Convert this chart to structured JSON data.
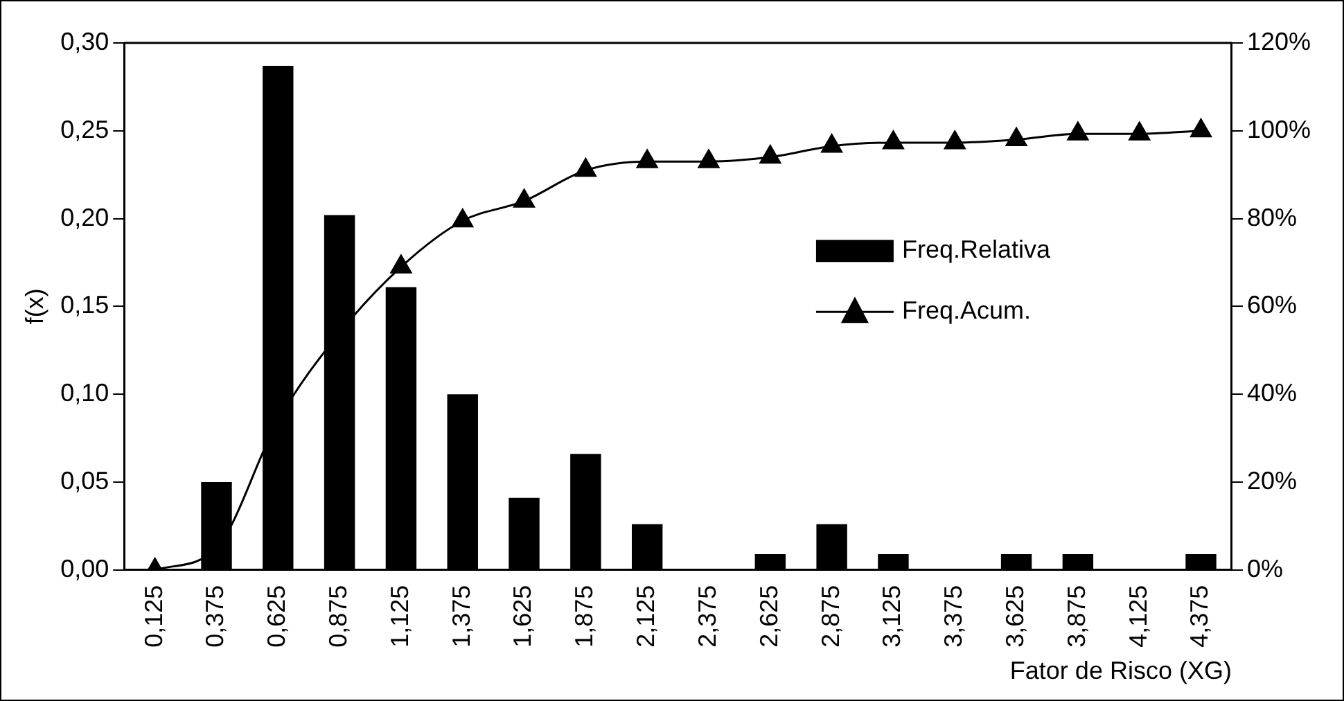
{
  "chart_data": {
    "type": "bar",
    "xlabel": "Fator de Risco (XG)",
    "ylabel": "f(x)",
    "categories": [
      "0,125",
      "0,375",
      "0,625",
      "0,875",
      "1,125",
      "1,375",
      "1,625",
      "1,875",
      "2,125",
      "2,375",
      "2,625",
      "2,875",
      "3,125",
      "3,375",
      "3,625",
      "3,875",
      "4,125",
      "4,375"
    ],
    "series": [
      {
        "name": "Freq.Relativa",
        "color": "#000000",
        "values": [
          0,
          0.05,
          0.287,
          0.202,
          0.161,
          0.1,
          0.041,
          0.066,
          0.026,
          0,
          0.009,
          0.026,
          0.009,
          0,
          0.009,
          0.009,
          0,
          0.009
        ]
      },
      {
        "name": "Freq.Acum.",
        "type": "line",
        "axis": "y2",
        "color": "#000000",
        "marker": "triangle",
        "values": [
          0,
          5,
          34,
          54,
          69,
          79.5,
          84,
          91,
          93,
          93,
          94,
          96.5,
          97.3,
          97.3,
          98,
          99.3,
          99.3,
          100
        ]
      }
    ],
    "ylim": [
      0,
      0.3
    ],
    "yticks": [
      {
        "value": 0,
        "label": "0,00"
      },
      {
        "value": 0.05,
        "label": "0,05"
      },
      {
        "value": 0.1,
        "label": "0,10"
      },
      {
        "value": 0.15,
        "label": "0,15"
      },
      {
        "value": 0.2,
        "label": "0,20"
      },
      {
        "value": 0.25,
        "label": "0,25"
      },
      {
        "value": 0.3,
        "label": "0,30"
      }
    ],
    "y2lim": [
      0,
      120
    ],
    "y2ticks": [
      {
        "value": 0,
        "label": "0%"
      },
      {
        "value": 20,
        "label": "20%"
      },
      {
        "value": 40,
        "label": "40%"
      },
      {
        "value": 60,
        "label": "60%"
      },
      {
        "value": 80,
        "label": "80%"
      },
      {
        "value": 100,
        "label": "100%"
      },
      {
        "value": 120,
        "label": "120%"
      }
    ],
    "grid": false,
    "legend": "right"
  }
}
